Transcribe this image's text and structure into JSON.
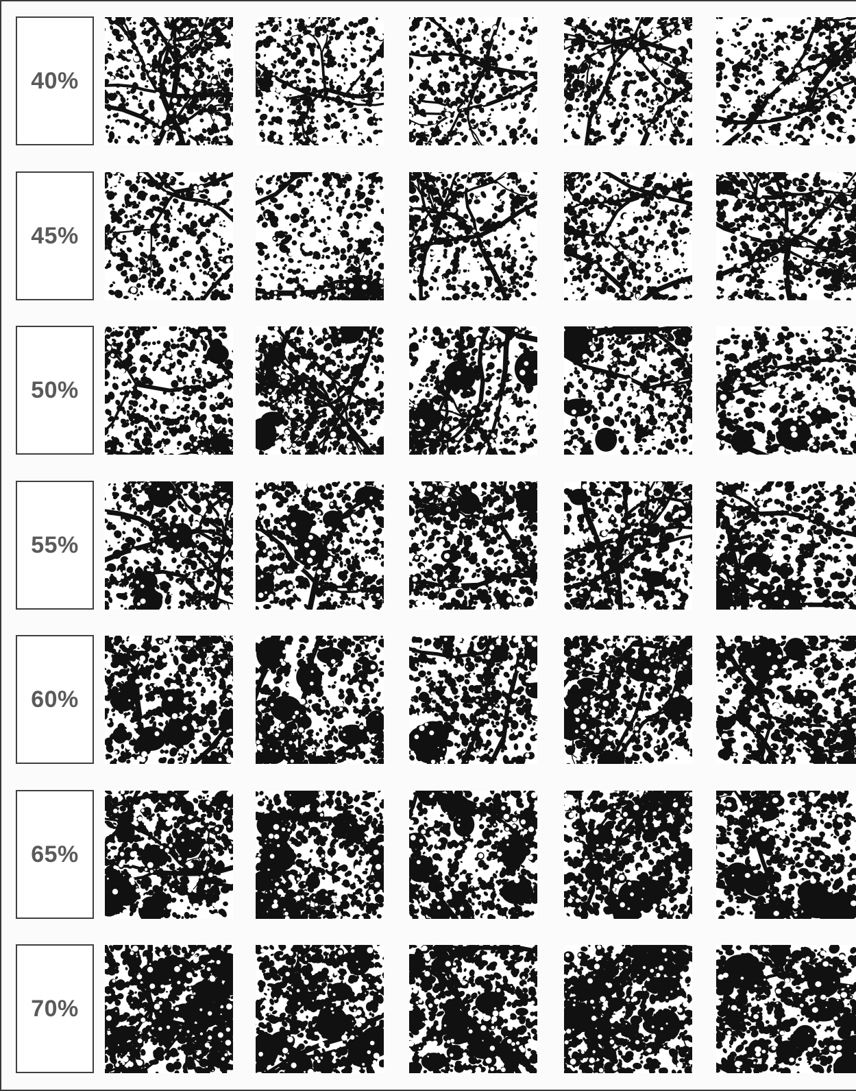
{
  "rows": [
    {
      "label": "40%",
      "cover": 0.4
    },
    {
      "label": "45%",
      "cover": 0.45
    },
    {
      "label": "50%",
      "cover": 0.5
    },
    {
      "label": "55%",
      "cover": 0.55
    },
    {
      "label": "60%",
      "cover": 0.6
    },
    {
      "label": "65%",
      "cover": 0.65
    },
    {
      "label": "70%",
      "cover": 0.7
    }
  ],
  "tiles_per_row": 5,
  "colors": {
    "ink": "#111111",
    "label_text": "#5a5a5a",
    "frame": "#3f3f3f",
    "paper": "#ffffff"
  }
}
